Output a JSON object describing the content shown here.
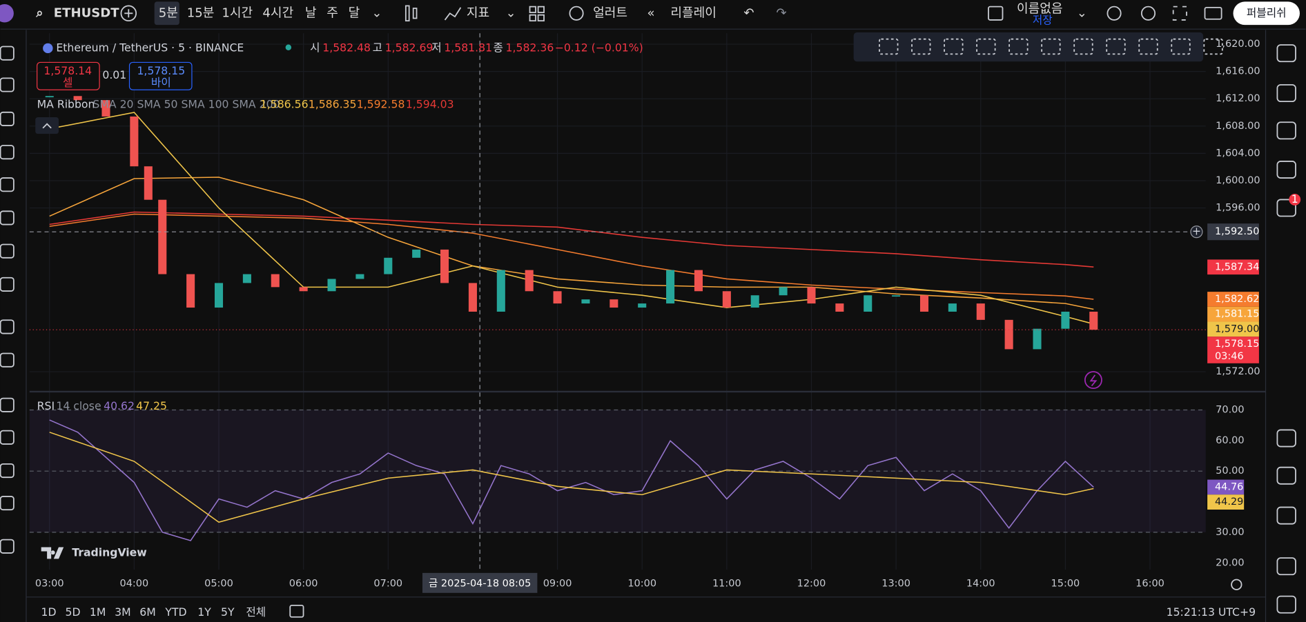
{
  "toolbar": {
    "symbol": "ETHUSDT",
    "intervals": [
      "5분",
      "15분",
      "1시간",
      "4시간",
      "날",
      "주",
      "달"
    ],
    "indicators": "지표",
    "alert": "얼러트",
    "replay": "리플레이",
    "layout_name": "이름없음",
    "save": "저장",
    "publish": "퍼블리쉬"
  },
  "legend": {
    "title": "Ethereum / TetherUS · 5 · BINANCE",
    "ohlc": [
      {
        "label": "시",
        "value": "1,582.48"
      },
      {
        "label": "고",
        "value": "1,582.69"
      },
      {
        "label": "저",
        "value": "1,581.81"
      },
      {
        "label": "종",
        "value": "1,582.36"
      }
    ],
    "change": "−0.12 (−0.01%)"
  },
  "trade": {
    "sell_price": "1,578.14",
    "sell": "셀",
    "spread": "0.01",
    "buy_price": "1,578.15",
    "buy": "바이"
  },
  "ma_legend": {
    "name": "MA Ribbon",
    "params": "SMA 20 SMA 50 SMA 100 SMA 200",
    "values": [
      "1,586.56",
      "1,586.35",
      "1,592.58",
      "1,594.03"
    ]
  },
  "rsi_legend": {
    "name": "RSI",
    "params": "14 close",
    "values": [
      "40.62",
      "47.25"
    ]
  },
  "price_chart": {
    "type": "candlestick",
    "x": [
      "03:00",
      "03:20",
      "03:40",
      "04:00",
      "04:10",
      "04:20",
      "04:40",
      "05:00",
      "05:20",
      "05:40",
      "06:00",
      "06:20",
      "06:40",
      "07:00",
      "07:20",
      "07:40",
      "08:00",
      "08:20",
      "08:40",
      "09:00",
      "09:20",
      "09:40",
      "10:00",
      "10:20",
      "10:40",
      "11:00",
      "11:20",
      "11:40",
      "12:00",
      "12:20",
      "12:40",
      "13:00",
      "13:20",
      "13:40",
      "14:00",
      "14:20",
      "14:40",
      "15:00",
      "15:20"
    ],
    "close": [
      1612.4,
      1611.8,
      1609.4,
      1602.1,
      1597.2,
      1586.3,
      1581.4,
      1585.0,
      1586.3,
      1584.4,
      1583.8,
      1585.6,
      1586.3,
      1588.7,
      1589.9,
      1585.0,
      1580.8,
      1586.9,
      1583.8,
      1582.0,
      1582.6,
      1581.4,
      1582.0,
      1586.9,
      1583.8,
      1581.4,
      1583.2,
      1584.4,
      1582.0,
      1580.8,
      1583.2,
      1583.2,
      1580.8,
      1582.0,
      1579.6,
      1575.3,
      1578.3,
      1580.8,
      1578.15
    ],
    "up_color": "#26a69a",
    "down_color": "#ef5350",
    "ylim": [
      1569.2,
      1621.6
    ],
    "yticks": [
      {
        "value": 1620,
        "label": "1,620.00"
      },
      {
        "value": 1616,
        "label": "1,616.00"
      },
      {
        "value": 1612,
        "label": "1,612.00"
      },
      {
        "value": 1608,
        "label": "1,608.00"
      },
      {
        "value": 1604,
        "label": "1,604.00"
      },
      {
        "value": 1600,
        "label": "1,600.00"
      },
      {
        "value": 1596,
        "label": "1,596.00"
      },
      {
        "value": 1572,
        "label": "1,572.00"
      }
    ],
    "ma_series": [
      {
        "color": "#f0c54a",
        "x": [
          "03:00",
          "04:00",
          "05:00",
          "06:00",
          "07:00",
          "08:00",
          "09:00",
          "10:00",
          "11:00",
          "12:00",
          "13:00",
          "14:00",
          "15:00",
          "15:20"
        ],
        "values": [
          1607.6,
          1610.0,
          1596.0,
          1584.4,
          1584.4,
          1587.5,
          1584.4,
          1583.2,
          1581.4,
          1582.6,
          1584.4,
          1583.2,
          1580.1,
          1579.0
        ]
      },
      {
        "color": "#f7a53b",
        "x": [
          "03:00",
          "04:00",
          "05:00",
          "06:00",
          "07:00",
          "08:00",
          "09:00",
          "10:00",
          "11:00",
          "12:00",
          "13:00",
          "14:00",
          "15:00",
          "15:20"
        ],
        "values": [
          1594.8,
          1600.3,
          1600.5,
          1597.2,
          1591.7,
          1587.5,
          1585.6,
          1584.7,
          1584.4,
          1584.4,
          1583.4,
          1582.8,
          1582.0,
          1581.15
        ]
      },
      {
        "color": "#f57c2e",
        "x": [
          "03:00",
          "04:00",
          "05:00",
          "06:00",
          "07:00",
          "08:00",
          "09:00",
          "10:00",
          "11:00",
          "12:00",
          "13:00",
          "14:00",
          "15:00",
          "15:20"
        ],
        "values": [
          1593.3,
          1595.1,
          1594.8,
          1594.5,
          1593.6,
          1592.3,
          1589.9,
          1587.5,
          1585.6,
          1584.7,
          1584.1,
          1583.6,
          1583.1,
          1582.62
        ]
      },
      {
        "color": "#e53935",
        "x": [
          "03:00",
          "04:00",
          "05:00",
          "06:00",
          "07:00",
          "08:00",
          "09:00",
          "10:00",
          "11:00",
          "12:00",
          "13:00",
          "14:00",
          "15:00",
          "15:20"
        ],
        "values": [
          1593.6,
          1595.4,
          1595.1,
          1594.8,
          1594.2,
          1593.6,
          1593.2,
          1591.7,
          1590.5,
          1589.9,
          1589.3,
          1588.4,
          1587.7,
          1587.34
        ]
      }
    ],
    "crosshair_price": {
      "value": 1592.5,
      "label": "1,592.50",
      "color": "#363a45"
    },
    "price_labels": [
      {
        "value": 1587.34,
        "label": "1,587.34",
        "color": "#f23645"
      },
      {
        "value": 1582.62,
        "label": "1,582.62",
        "color": "#f57c2e"
      },
      {
        "value": 1581.15,
        "label": "1,581.15",
        "color": "#f7a53b"
      },
      {
        "value": 1579.0,
        "label": "1,579.00",
        "color": "#f0c54a"
      }
    ],
    "last_price": {
      "value": 1578.15,
      "label": "1,578.15",
      "color": "#f23645",
      "countdown": "03:46"
    }
  },
  "rsi_chart": {
    "type": "line",
    "ylim": [
      17.8,
      75.7
    ],
    "yticks": [
      {
        "value": 70,
        "label": "70.00"
      },
      {
        "value": 60,
        "label": "60.00"
      },
      {
        "value": 50,
        "label": "50.00"
      },
      {
        "value": 30,
        "label": "30.00"
      },
      {
        "value": 20,
        "label": "20.00"
      }
    ],
    "band": [
      30,
      70
    ],
    "dashed_levels": [
      70,
      50,
      30
    ],
    "series": [
      {
        "color": "#9575cd",
        "x": [
          "03:00",
          "03:20",
          "03:40",
          "04:00",
          "04:20",
          "04:40",
          "05:00",
          "05:20",
          "05:40",
          "06:00",
          "06:20",
          "06:40",
          "07:00",
          "07:20",
          "07:40",
          "08:00",
          "08:20",
          "08:40",
          "09:00",
          "09:20",
          "09:40",
          "10:00",
          "10:20",
          "10:40",
          "11:00",
          "11:20",
          "11:40",
          "12:00",
          "12:20",
          "12:40",
          "13:00",
          "13:20",
          "13:40",
          "14:00",
          "14:20",
          "14:40",
          "15:00",
          "15:20"
        ],
        "values": [
          66.7,
          62.7,
          54.5,
          46.3,
          30,
          27.3,
          40.9,
          38.2,
          43.6,
          40.9,
          46.3,
          49.1,
          55.9,
          51.8,
          49.1,
          32.8,
          51.8,
          49.1,
          43.6,
          46.3,
          42.3,
          43.6,
          59.9,
          51.8,
          40.9,
          50.4,
          53.2,
          47.7,
          40.9,
          51.8,
          54.5,
          43.6,
          49.1,
          43.6,
          31.4,
          43.6,
          53.2,
          44.76
        ]
      },
      {
        "color": "#f0c54a",
        "x": [
          "03:00",
          "04:00",
          "05:00",
          "06:00",
          "07:00",
          "08:00",
          "09:00",
          "10:00",
          "11:00",
          "12:00",
          "13:00",
          "14:00",
          "15:00",
          "15:20"
        ],
        "values": [
          62.7,
          53.2,
          33.3,
          40.9,
          47.7,
          50.4,
          45.0,
          42.3,
          50.4,
          49.1,
          47.7,
          46.3,
          42.3,
          44.29
        ]
      }
    ],
    "labels": [
      {
        "value": 44.76,
        "label": "44.76",
        "color": "#7e57c2"
      },
      {
        "value": 44.29,
        "label": "44.29",
        "color": "#f0c54a"
      }
    ]
  },
  "time_axis": {
    "ticks": [
      "03:00",
      "04:00",
      "05:00",
      "06:00",
      "07:00",
      "09:00",
      "10:00",
      "11:00",
      "12:00",
      "13:00",
      "14:00",
      "15:00",
      "16:00"
    ],
    "crosshair": "금 2025-04-18 08:05"
  },
  "bottom_bar": {
    "ranges": [
      "1D",
      "5D",
      "1M",
      "3M",
      "6M",
      "YTD",
      "1Y",
      "5Y",
      "전체"
    ],
    "clock": "15:21:13 UTC+9"
  },
  "logo": "TradingView",
  "sidebar_badge": "1"
}
